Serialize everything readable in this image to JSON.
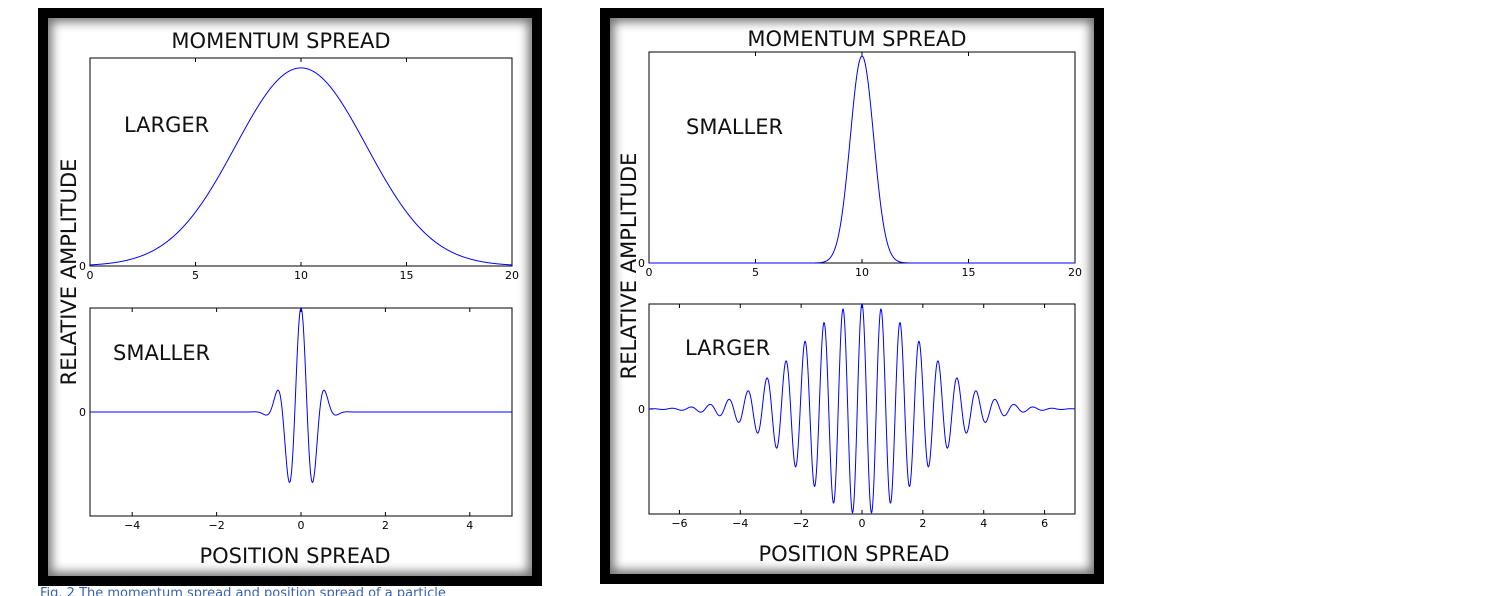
{
  "caption": "Fig. 2 The momentum spread and position spread of a particle",
  "colors": {
    "curve": "#0000ff",
    "frame": "#000000",
    "caption": "#3a62b0"
  },
  "figures": [
    {
      "top_title": "MOMENTUM SPREAD",
      "bottom_title": "POSITION SPREAD",
      "ylabel": "RELATIVE AMPLITUDE"
    },
    {
      "top_title": "MOMENTUM SPREAD",
      "bottom_title": "POSITION SPREAD",
      "ylabel": "RELATIVE AMPLITUDE"
    }
  ],
  "chart_data": [
    {
      "type": "line",
      "panel": "left-top",
      "title": "MOMENTUM SPREAD",
      "annotation": "LARGER",
      "xlim": [
        0,
        20
      ],
      "ylim": [
        0,
        1.05
      ],
      "xticks": [
        0,
        5,
        10,
        15,
        20
      ],
      "yticks": [
        0
      ],
      "function": "gaussian",
      "center": 10,
      "sigma": 3.1
    },
    {
      "type": "line",
      "panel": "left-bottom",
      "title": "POSITION SPREAD",
      "annotation": "SMALLER",
      "xlim": [
        -5,
        5
      ],
      "ylim": [
        -1,
        1
      ],
      "xticks": [
        -4,
        -2,
        0,
        2,
        4
      ],
      "yticks": [
        0
      ],
      "function": "wavepacket",
      "envelope_sigma": 0.32,
      "frequency": 1.7
    },
    {
      "type": "line",
      "panel": "right-top",
      "title": "MOMENTUM SPREAD",
      "annotation": "SMALLER",
      "xlim": [
        0,
        20
      ],
      "ylim": [
        0,
        1.02
      ],
      "xticks": [
        0,
        5,
        10,
        15,
        20
      ],
      "yticks": [
        0
      ],
      "function": "gaussian",
      "center": 10,
      "sigma": 0.55
    },
    {
      "type": "line",
      "panel": "right-bottom",
      "title": "POSITION SPREAD",
      "annotation": "LARGER",
      "xlim": [
        -7,
        7
      ],
      "ylim": [
        -1,
        1
      ],
      "xticks": [
        -6,
        -4,
        -2,
        0,
        2,
        4,
        6
      ],
      "yticks": [
        0
      ],
      "function": "wavepacket",
      "envelope_sigma": 2.0,
      "frequency": 1.6
    }
  ]
}
